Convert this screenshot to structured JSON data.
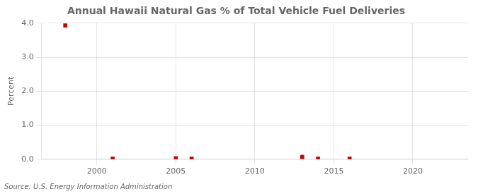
{
  "chart_data": {
    "type": "scatter",
    "title": "Annual Hawaii Natural Gas % of Total Vehicle Fuel Deliveries",
    "ylabel": "Percent",
    "annotations": [
      "Source: U.S. Energy Information Administration"
    ],
    "x": [
      1998,
      2001,
      2005,
      2006,
      2013,
      2014,
      2016
    ],
    "values": [
      3.93,
      0.02,
      0.03,
      0.02,
      0.07,
      0.02,
      0.02
    ],
    "color": "#cc0000",
    "marker": "square",
    "xlim": [
      1996.5,
      2023.5
    ],
    "xticks": [
      2000,
      2005,
      2010,
      2015,
      2020
    ],
    "ylim": [
      0.0,
      4.0
    ],
    "yticks": [
      {
        "value": 0.0,
        "label": "0.0"
      },
      {
        "value": 1.0,
        "label": "1.0"
      },
      {
        "value": 2.0,
        "label": "2.0"
      },
      {
        "value": 3.0,
        "label": "3.0"
      },
      {
        "value": 4.0,
        "label": "4.0"
      }
    ],
    "grid": true
  }
}
